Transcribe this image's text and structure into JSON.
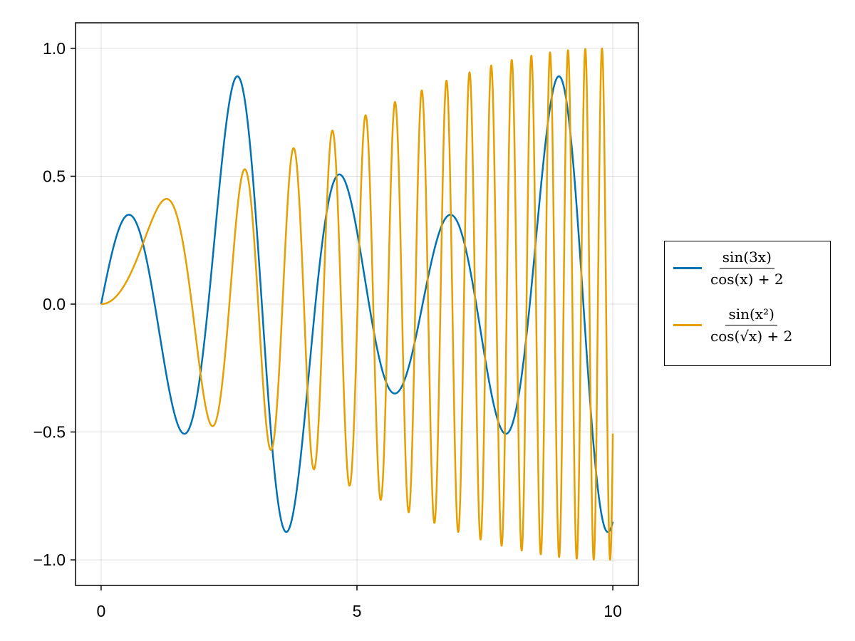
{
  "chart_data": {
    "type": "line",
    "xlim": [
      -0.5,
      10.5
    ],
    "ylim": [
      -1.1,
      1.1
    ],
    "x_range": [
      0,
      10
    ],
    "grid": true,
    "legend_placement": "right",
    "x_ticks": [
      0,
      5,
      10
    ],
    "x_tick_labels": [
      "0",
      "5",
      "10"
    ],
    "y_ticks": [
      -1.0,
      -0.5,
      0.0,
      0.5,
      1.0
    ],
    "y_tick_labels": [
      "−1.0",
      "−0.5",
      "0.0",
      "0.5",
      "1.0"
    ],
    "series": [
      {
        "id": "s1",
        "expression": "sin(3x)/(cos(x)+2)",
        "legend_num": "sin(3x)",
        "legend_den": "cos(x) + 2",
        "color": "#0072b2"
      },
      {
        "id": "s2",
        "expression": "sin(x^2)/(cos(sqrt(x))+2)",
        "legend_num": "sin(x²)",
        "legend_den": "cos(√x) + 2",
        "color": "#e69f00"
      }
    ]
  }
}
